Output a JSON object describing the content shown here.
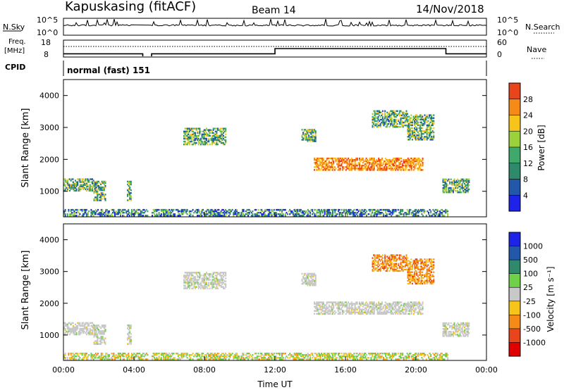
{
  "header": {
    "station": "Kapuskasing (fitACF)",
    "beam": "Beam 14",
    "date": "14/Nov/2018"
  },
  "status_panels": {
    "nsky_label": "N.Sky",
    "nsky_top": "10^5",
    "nsky_bottom": "10^0",
    "nsearch_label": "N.Search",
    "nsearch_top": "10^5",
    "nsearch_bottom": "10^0",
    "freq_label_1": "Freq.",
    "freq_label_2": "[MHz]",
    "freq_top": "18",
    "freq_bottom": "8",
    "nave_top": "60",
    "nave_bottom": "0",
    "nave_label": "Nave",
    "cpid_label": "CPID",
    "cpid_text": "normal (fast) 151"
  },
  "chart_data": [
    {
      "type": "heatmap",
      "panel": "power",
      "ylabel": "Slant Range [km]",
      "xlabel": "",
      "yticks": [
        1000,
        2000,
        3000,
        4000
      ],
      "ylim": [
        200,
        4500
      ],
      "xlim_hours": [
        0,
        24
      ],
      "colorbar": {
        "label": "Power [dB]",
        "ticks": [
          "4",
          "8",
          "12",
          "16",
          "20",
          "24",
          "28"
        ],
        "colors": [
          "#1d24e8",
          "#2357a9",
          "#2e8a6a",
          "#41a86b",
          "#9bd23c",
          "#f7c51a",
          "#f58a17",
          "#e9451c"
        ]
      },
      "echo_regions": [
        {
          "t": [
            0.0,
            4.8
          ],
          "r": [
            220,
            420
          ],
          "note": "near-range"
        },
        {
          "t": [
            5.0,
            21.8
          ],
          "r": [
            220,
            420
          ],
          "note": "near-range"
        },
        {
          "t": [
            0.0,
            1.8
          ],
          "r": [
            1000,
            1400
          ]
        },
        {
          "t": [
            1.7,
            2.4
          ],
          "r": [
            700,
            1300
          ]
        },
        {
          "t": [
            3.6,
            3.8
          ],
          "r": [
            700,
            1300
          ]
        },
        {
          "t": [
            6.8,
            9.2
          ],
          "r": [
            2450,
            2950
          ]
        },
        {
          "t": [
            13.5,
            14.3
          ],
          "r": [
            2550,
            2950
          ]
        },
        {
          "t": [
            14.2,
            20.4
          ],
          "r": [
            1650,
            2050
          ],
          "note": "strong band"
        },
        {
          "t": [
            17.5,
            19.5
          ],
          "r": [
            3000,
            3500
          ]
        },
        {
          "t": [
            19.5,
            21.0
          ],
          "r": [
            2600,
            3400
          ]
        },
        {
          "t": [
            21.5,
            23.0
          ],
          "r": [
            950,
            1400
          ]
        }
      ]
    },
    {
      "type": "heatmap",
      "panel": "velocity",
      "ylabel": "Slant Range [km]",
      "xlabel": "Time UT",
      "xticks": [
        "00:00",
        "04:00",
        "08:00",
        "12:00",
        "16:00",
        "20:00",
        "00:00"
      ],
      "yticks": [
        1000,
        2000,
        3000,
        4000
      ],
      "ylim": [
        200,
        4500
      ],
      "xlim_hours": [
        0,
        24
      ],
      "colorbar": {
        "label": "Velocity [m s⁻¹]",
        "ticks": [
          "1000",
          "500",
          "100",
          "25",
          "-25",
          "-100",
          "-500",
          "-1000"
        ],
        "colors": [
          "#1d24e8",
          "#2357a9",
          "#2e8a6a",
          "#6fd04a",
          "#c8c8c8",
          "#f7c51a",
          "#f58a17",
          "#e9451c",
          "#e00000"
        ]
      }
    }
  ]
}
